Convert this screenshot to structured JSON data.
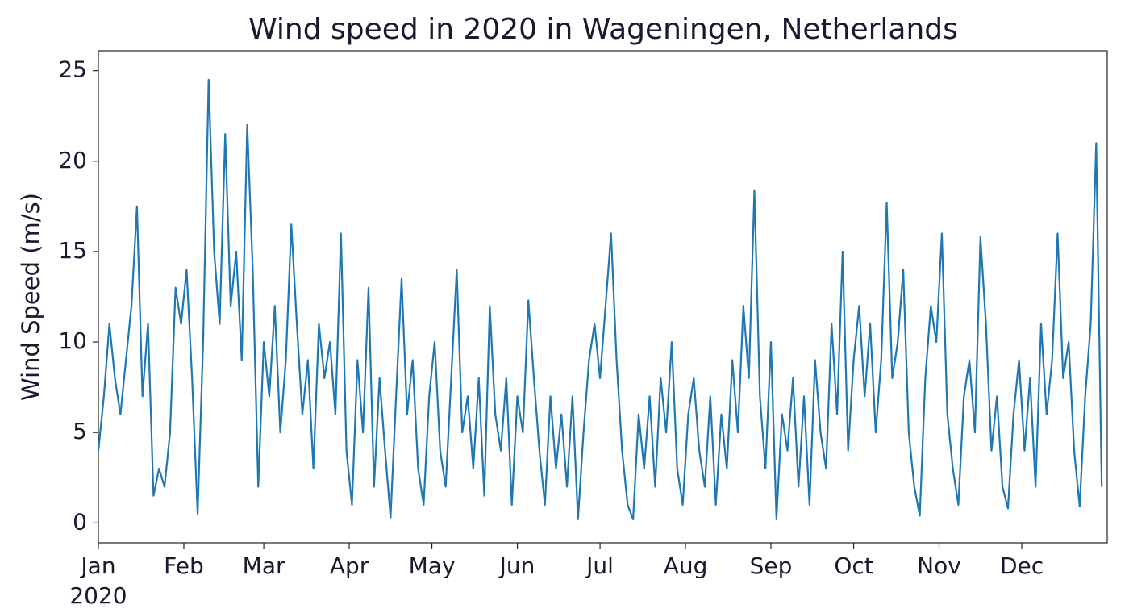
{
  "chart_data": {
    "type": "line",
    "title": "Wind speed in 2020 in Wageningen, Netherlands",
    "ylabel": "Wind Speed (m/s)",
    "x_offset_label": "2020",
    "xlim": [
      0,
      366
    ],
    "ylim": [
      -1.1,
      26.1
    ],
    "yticks": [
      0,
      5,
      10,
      15,
      20,
      25
    ],
    "xticks": [
      {
        "value": 0,
        "label": "Jan"
      },
      {
        "value": 31,
        "label": "Feb"
      },
      {
        "value": 60,
        "label": "Mar"
      },
      {
        "value": 91,
        "label": "Apr"
      },
      {
        "value": 121,
        "label": "May"
      },
      {
        "value": 152,
        "label": "Jun"
      },
      {
        "value": 182,
        "label": "Jul"
      },
      {
        "value": 213,
        "label": "Aug"
      },
      {
        "value": 244,
        "label": "Sep"
      },
      {
        "value": 274,
        "label": "Oct"
      },
      {
        "value": 305,
        "label": "Nov"
      },
      {
        "value": 335,
        "label": "Dec"
      }
    ],
    "grid": false,
    "x": [
      0,
      2,
      4,
      6,
      8,
      10,
      12,
      14,
      16,
      18,
      20,
      22,
      24,
      26,
      28,
      30,
      32,
      34,
      36,
      38,
      40,
      42,
      44,
      46,
      48,
      50,
      52,
      54,
      56,
      58,
      60,
      62,
      64,
      66,
      68,
      70,
      72,
      74,
      76,
      78,
      80,
      82,
      84,
      86,
      88,
      90,
      92,
      94,
      96,
      98,
      100,
      102,
      104,
      106,
      108,
      110,
      112,
      114,
      116,
      118,
      120,
      122,
      124,
      126,
      128,
      130,
      132,
      134,
      136,
      138,
      140,
      142,
      144,
      146,
      148,
      150,
      152,
      154,
      156,
      158,
      160,
      162,
      164,
      166,
      168,
      170,
      172,
      174,
      176,
      178,
      180,
      182,
      184,
      186,
      188,
      190,
      192,
      194,
      196,
      198,
      200,
      202,
      204,
      206,
      208,
      210,
      212,
      214,
      216,
      218,
      220,
      222,
      224,
      226,
      228,
      230,
      232,
      234,
      236,
      238,
      240,
      242,
      244,
      246,
      248,
      250,
      252,
      254,
      256,
      258,
      260,
      262,
      264,
      266,
      268,
      270,
      272,
      274,
      276,
      278,
      280,
      282,
      284,
      286,
      288,
      290,
      292,
      294,
      296,
      298,
      300,
      302,
      304,
      306,
      308,
      310,
      312,
      314,
      316,
      318,
      320,
      322,
      324,
      326,
      328,
      330,
      332,
      334,
      336,
      338,
      340,
      342,
      344,
      346,
      348,
      350,
      352,
      354,
      356,
      358,
      360,
      362,
      364
    ],
    "series": [
      {
        "name": "Wind Speed",
        "color": "#1f77b4",
        "values": [
          4,
          7,
          11,
          8,
          6,
          9,
          12,
          17.5,
          7,
          11,
          1.5,
          3,
          2,
          5,
          13,
          11,
          14,
          8,
          0.5,
          10,
          24.5,
          15,
          11,
          21.5,
          12,
          15,
          9,
          22,
          14,
          2,
          10,
          7,
          12,
          5,
          9,
          16.5,
          11,
          6,
          9,
          3,
          11,
          8,
          10,
          6,
          16,
          4,
          1,
          9,
          5,
          13,
          2,
          8,
          4,
          0.3,
          7,
          13.5,
          6,
          9,
          3,
          1,
          7,
          10,
          4,
          2,
          8,
          14,
          5,
          7,
          3,
          8,
          1.5,
          12,
          6,
          4,
          8,
          1,
          7,
          5,
          12.3,
          8,
          4,
          1,
          7,
          3,
          6,
          2,
          7,
          0.2,
          5,
          9,
          11,
          8,
          12,
          16,
          9,
          4,
          1,
          0.2,
          6,
          3,
          7,
          2,
          8,
          5,
          10,
          3,
          1,
          6,
          8,
          4,
          2,
          7,
          1,
          6,
          3,
          9,
          5,
          12,
          8,
          18.4,
          7,
          3,
          10,
          0.2,
          6,
          4,
          8,
          2,
          7,
          1,
          9,
          5,
          3,
          11,
          6,
          15,
          4,
          9,
          12,
          7,
          11,
          5,
          9,
          17.7,
          8,
          10,
          14,
          5,
          2,
          0.4,
          8,
          12,
          10,
          16,
          6,
          3,
          1,
          7,
          9,
          5,
          15.8,
          11,
          4,
          7,
          2,
          0.8,
          6,
          9,
          4,
          8,
          2,
          11,
          6,
          9,
          16,
          8,
          10,
          4,
          0.9,
          7,
          11,
          21,
          2
        ]
      }
    ]
  }
}
